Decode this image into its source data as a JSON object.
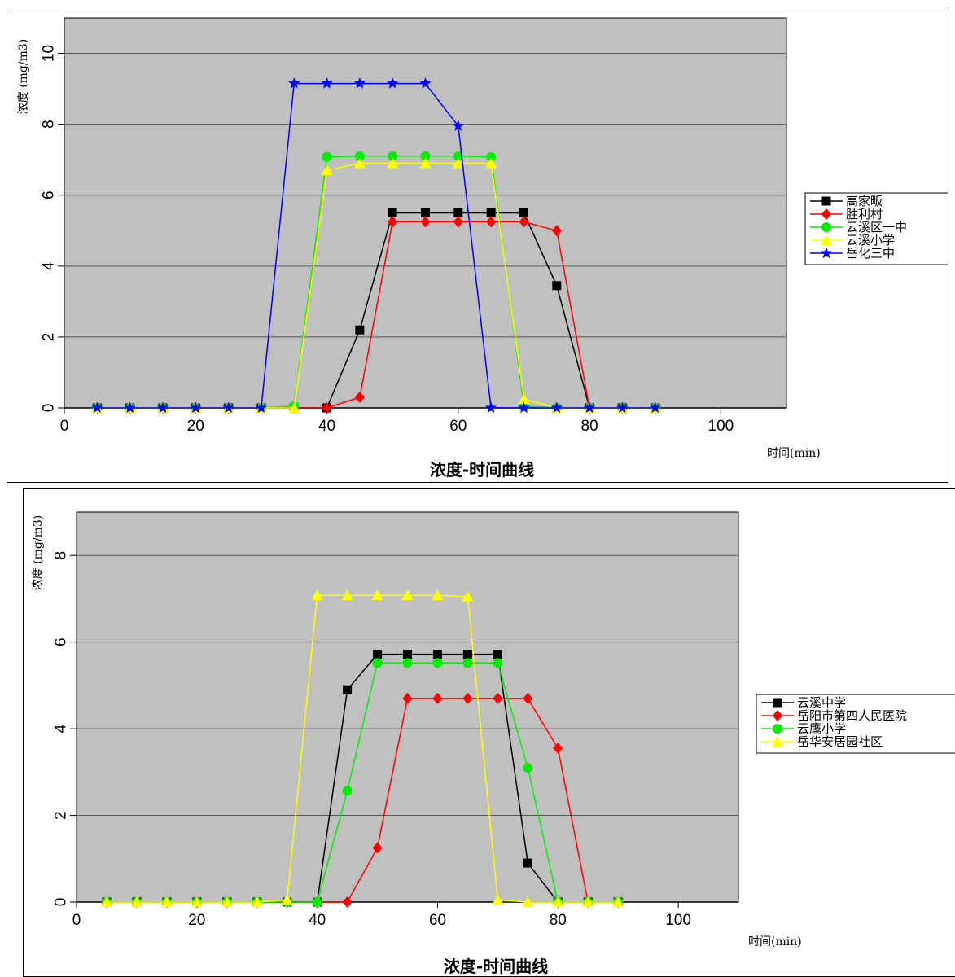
{
  "chart_data": [
    {
      "type": "line",
      "title": "浓度-时间曲线",
      "xlabel": "时间(min)",
      "ylabel": "浓度 (mg/m3)",
      "xlim": [
        0,
        110
      ],
      "ylim": [
        0,
        11
      ],
      "xticks": [
        0,
        20,
        40,
        60,
        80,
        100
      ],
      "yticks": [
        0,
        2,
        4,
        6,
        8,
        10
      ],
      "grid": "horizontal",
      "legend_position": "right",
      "x": [
        5,
        10,
        15,
        20,
        25,
        30,
        35,
        40,
        45,
        50,
        55,
        60,
        65,
        70,
        75,
        80,
        85,
        90
      ],
      "series": [
        {
          "name": "高家畈",
          "color": "#000000",
          "marker": "square",
          "values": [
            0,
            0,
            0,
            0,
            0,
            0,
            0,
            0,
            2.2,
            5.5,
            5.5,
            5.5,
            5.5,
            5.5,
            3.45,
            0,
            0,
            0
          ]
        },
        {
          "name": "胜利村",
          "color": "#ff0000",
          "marker": "diamond",
          "values": [
            0,
            0,
            0,
            0,
            0,
            0,
            0,
            0,
            0.3,
            5.25,
            5.25,
            5.25,
            5.25,
            5.25,
            5.0,
            0,
            0,
            0
          ]
        },
        {
          "name": "云溪区一中",
          "color": "#00ee00",
          "marker": "circle",
          "values": [
            0,
            0,
            0,
            0,
            0,
            0,
            0.05,
            7.08,
            7.1,
            7.1,
            7.1,
            7.1,
            7.08,
            0.05,
            0,
            0,
            0,
            0
          ]
        },
        {
          "name": "云溪小学",
          "color": "#ffff00",
          "marker": "triangle",
          "values": [
            0,
            0,
            0,
            0,
            0,
            0,
            0,
            6.7,
            6.9,
            6.9,
            6.9,
            6.9,
            6.9,
            0.25,
            0,
            0,
            0,
            0
          ]
        },
        {
          "name": "岳化三中",
          "color": "#0000ff",
          "marker": "star",
          "values": [
            0,
            0,
            0,
            0,
            0,
            0,
            9.15,
            9.15,
            9.15,
            9.15,
            9.15,
            7.95,
            0,
            0,
            0,
            0,
            0,
            0
          ]
        }
      ]
    },
    {
      "type": "line",
      "title": "浓度-时间曲线",
      "xlabel": "时间(min)",
      "ylabel": "浓度 (mg/m3)",
      "xlim": [
        0,
        110
      ],
      "ylim": [
        0,
        9
      ],
      "xticks": [
        0,
        20,
        40,
        60,
        80,
        100
      ],
      "yticks": [
        0,
        2,
        4,
        6,
        8
      ],
      "grid": "horizontal",
      "legend_position": "right",
      "x": [
        5,
        10,
        15,
        20,
        25,
        30,
        35,
        40,
        45,
        50,
        55,
        60,
        65,
        70,
        75,
        80,
        85,
        90
      ],
      "series": [
        {
          "name": "云溪中学",
          "color": "#000000",
          "marker": "square",
          "values": [
            0,
            0,
            0,
            0,
            0,
            0,
            0,
            0,
            4.9,
            5.72,
            5.72,
            5.72,
            5.72,
            5.72,
            0.9,
            0,
            0,
            0
          ]
        },
        {
          "name": "岳阳市第四人民医院",
          "color": "#ff0000",
          "marker": "diamond",
          "values": [
            0,
            0,
            0,
            0,
            0,
            0,
            0,
            0,
            0,
            1.25,
            4.7,
            4.7,
            4.7,
            4.7,
            4.7,
            3.55,
            0,
            0
          ]
        },
        {
          "name": "云鹰小学",
          "color": "#00ee00",
          "marker": "circle",
          "values": [
            0,
            0,
            0,
            0,
            0,
            0,
            0,
            0,
            2.57,
            5.52,
            5.52,
            5.52,
            5.52,
            5.52,
            3.1,
            0,
            0,
            0
          ]
        },
        {
          "name": "岳华安居园社区",
          "color": "#ffff00",
          "marker": "triangle",
          "values": [
            0,
            0,
            0,
            0,
            0,
            0,
            0.05,
            7.08,
            7.08,
            7.08,
            7.08,
            7.08,
            7.05,
            0.05,
            0,
            0,
            0,
            0
          ]
        }
      ]
    }
  ]
}
